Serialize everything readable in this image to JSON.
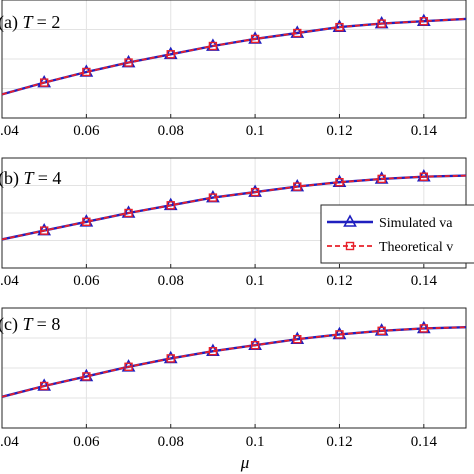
{
  "chart_data": [
    {
      "type": "line",
      "title_prefix": "(a)",
      "title_var": "T",
      "title_value": "= 2",
      "xlabel": "",
      "x_ticks": [
        0.04,
        0.06,
        0.08,
        0.1,
        0.12,
        0.14
      ],
      "x_tick_labels": [
        ".04",
        "0.06",
        "0.08",
        "0.1",
        "0.12",
        "0.14"
      ],
      "xlim": [
        0.04,
        0.15
      ],
      "ylim": [
        0,
        1
      ],
      "x": [
        0.04,
        0.05,
        0.06,
        0.07,
        0.08,
        0.09,
        0.1,
        0.11,
        0.12,
        0.13,
        0.14,
        0.15
      ],
      "series": [
        {
          "name": "Simulated values",
          "color": "#1f1fbf",
          "marker": "triangle",
          "values": [
            0.2,
            0.3,
            0.39,
            0.47,
            0.54,
            0.61,
            0.67,
            0.72,
            0.77,
            0.8,
            0.82,
            0.84
          ]
        },
        {
          "name": "Theoretical values",
          "color": "#e8202a",
          "marker": "square",
          "values": [
            0.2,
            0.3,
            0.39,
            0.47,
            0.54,
            0.61,
            0.67,
            0.72,
            0.77,
            0.8,
            0.82,
            0.84
          ]
        }
      ],
      "grid": true
    },
    {
      "type": "line",
      "title_prefix": "(b)",
      "title_var": "T",
      "title_value": "= 4",
      "xlabel": "",
      "x_ticks": [
        0.04,
        0.06,
        0.08,
        0.1,
        0.12,
        0.14
      ],
      "x_tick_labels": [
        ".04",
        "0.06",
        "0.08",
        "0.1",
        "0.12",
        "0.14"
      ],
      "xlim": [
        0.04,
        0.15
      ],
      "ylim": [
        0,
        1
      ],
      "x": [
        0.04,
        0.05,
        0.06,
        0.07,
        0.08,
        0.09,
        0.1,
        0.11,
        0.12,
        0.13,
        0.14,
        0.15
      ],
      "series": [
        {
          "name": "Simulated values",
          "color": "#1f1fbf",
          "marker": "triangle",
          "values": [
            0.26,
            0.34,
            0.42,
            0.5,
            0.57,
            0.64,
            0.69,
            0.74,
            0.78,
            0.81,
            0.83,
            0.84
          ]
        },
        {
          "name": "Theoretical values",
          "color": "#e8202a",
          "marker": "square",
          "values": [
            0.26,
            0.34,
            0.42,
            0.5,
            0.57,
            0.64,
            0.69,
            0.74,
            0.78,
            0.81,
            0.83,
            0.84
          ]
        }
      ],
      "legend": {
        "placement": "right",
        "entries": [
          "Simulated va",
          "Theoretical v"
        ]
      },
      "grid": true
    },
    {
      "type": "line",
      "title_prefix": "(c)",
      "title_var": "T",
      "title_value": "= 8",
      "xlabel": "μ",
      "x_ticks": [
        0.04,
        0.06,
        0.08,
        0.1,
        0.12,
        0.14
      ],
      "x_tick_labels": [
        ".04",
        "0.06",
        "0.08",
        "0.1",
        "0.12",
        "0.14"
      ],
      "xlim": [
        0.04,
        0.15
      ],
      "ylim": [
        0,
        1
      ],
      "x": [
        0.04,
        0.05,
        0.06,
        0.07,
        0.08,
        0.09,
        0.1,
        0.11,
        0.12,
        0.13,
        0.14,
        0.15
      ],
      "series": [
        {
          "name": "Simulated values",
          "color": "#1f1fbf",
          "marker": "triangle",
          "values": [
            0.26,
            0.35,
            0.43,
            0.51,
            0.58,
            0.64,
            0.69,
            0.74,
            0.78,
            0.81,
            0.83,
            0.84
          ]
        },
        {
          "name": "Theoretical values",
          "color": "#e8202a",
          "marker": "square",
          "values": [
            0.26,
            0.35,
            0.43,
            0.51,
            0.58,
            0.64,
            0.69,
            0.74,
            0.78,
            0.81,
            0.83,
            0.84
          ]
        }
      ],
      "grid": true
    }
  ]
}
